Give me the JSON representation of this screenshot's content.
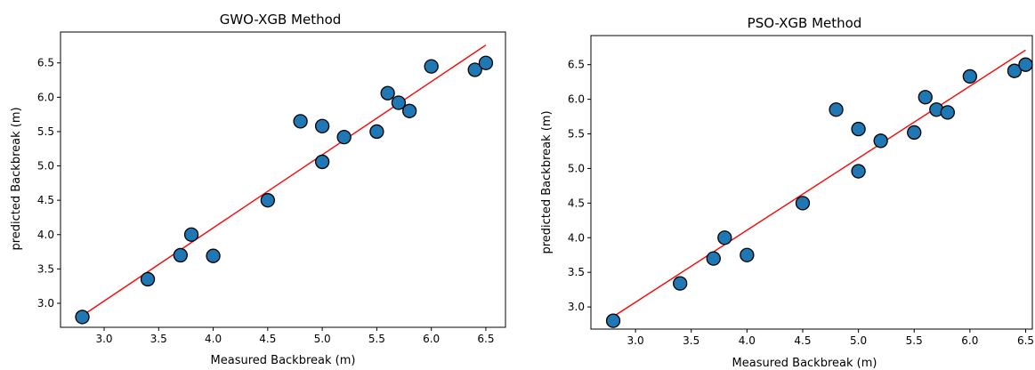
{
  "chart_data": [
    {
      "type": "scatter",
      "title": "GWO-XGB Method",
      "xlabel": "Measured Backbreak (m)",
      "ylabel": "predicted Backbreak (m)",
      "xticks": [
        "3.0",
        "3.5",
        "4.0",
        "4.5",
        "5.0",
        "5.5",
        "6.0",
        "6.5"
      ],
      "yticks": [
        "3.0",
        "3.5",
        "4.0",
        "4.5",
        "5.0",
        "5.5",
        "6.0",
        "6.5"
      ],
      "xlim": [
        2.6,
        6.68
      ],
      "ylim": [
        2.65,
        6.95
      ],
      "grid": false,
      "series": [
        {
          "marker_color": "#1f77b4",
          "x": [
            2.8,
            3.4,
            3.7,
            3.8,
            4.0,
            4.5,
            4.8,
            5.0,
            5.0,
            5.2,
            5.5,
            5.6,
            5.7,
            5.8,
            6.0,
            6.4,
            6.5
          ],
          "y": [
            2.8,
            3.35,
            3.7,
            4.0,
            3.69,
            4.5,
            5.65,
            5.58,
            5.06,
            5.42,
            5.5,
            6.06,
            5.92,
            5.8,
            6.45,
            6.4,
            6.5
          ]
        }
      ],
      "fit_line": {
        "color": "#ff0000",
        "x": [
          2.8,
          6.5
        ],
        "y": [
          2.82,
          6.76
        ]
      }
    },
    {
      "type": "scatter",
      "title": "PSO-XGB Method",
      "xlabel": "Measured Backbreak (m)",
      "ylabel": "predicted Backbreak (m)",
      "xticks": [
        "3.0",
        "3.5",
        "4.0",
        "4.5",
        "5.0",
        "5.5",
        "6.0",
        "6.5"
      ],
      "yticks": [
        "3.0",
        "3.5",
        "4.0",
        "4.5",
        "5.0",
        "5.5",
        "6.0",
        "6.5"
      ],
      "xlim": [
        2.6,
        6.56
      ],
      "ylim": [
        2.68,
        6.92
      ],
      "grid": false,
      "series": [
        {
          "marker_color": "#1f77b4",
          "x": [
            2.8,
            3.4,
            3.7,
            3.8,
            4.0,
            4.5,
            4.8,
            5.0,
            5.0,
            5.2,
            5.5,
            5.6,
            5.7,
            5.8,
            6.0,
            6.4,
            6.5
          ],
          "y": [
            2.8,
            3.34,
            3.7,
            4.0,
            3.75,
            4.5,
            5.85,
            5.57,
            4.96,
            5.4,
            5.52,
            6.03,
            5.85,
            5.81,
            6.33,
            6.41,
            6.5
          ]
        }
      ],
      "fit_line": {
        "color": "#ff0000",
        "x": [
          2.8,
          6.5
        ],
        "y": [
          2.86,
          6.71
        ]
      }
    }
  ]
}
